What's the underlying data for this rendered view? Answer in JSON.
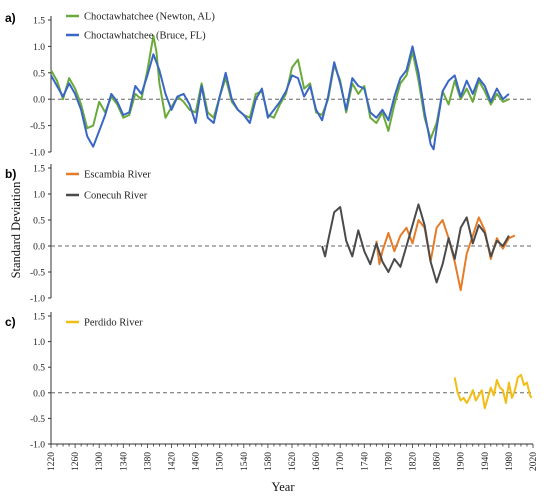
{
  "xlabel": "Year",
  "ylabel": "Standard Deviation",
  "x_ticks": [
    "1220",
    "1260",
    "1300",
    "1340",
    "1380",
    "1420",
    "1460",
    "1500",
    "1540",
    "1580",
    "1620",
    "1660",
    "1700",
    "1740",
    "1780",
    "1820",
    "1860",
    "1900",
    "1940",
    "1980",
    "2020"
  ],
  "y_ticks": [
    "-1.0",
    "-0.5",
    "0.0",
    "0.5",
    "1.0",
    "1.5"
  ],
  "colors": {
    "green": "#6aaa3a",
    "blue": "#3a66c4",
    "orange": "#e57c2a",
    "gray": "#4a4a4a",
    "yellow": "#f2bd14"
  },
  "chart_data": [
    {
      "type": "line",
      "panel_label": "a)",
      "xlabel": "Year",
      "ylabel": "Standard Deviation",
      "xlim": [
        1220,
        2020
      ],
      "ylim": [
        -1.0,
        1.5
      ],
      "grid": false,
      "zero_line": "dashed",
      "legend_position": "top-left",
      "series": [
        {
          "name": "Choctawhatchee (Newton, AL)",
          "color": "#6aaa3a",
          "x": [
            1220,
            1230,
            1240,
            1250,
            1260,
            1270,
            1280,
            1290,
            1300,
            1310,
            1320,
            1330,
            1340,
            1350,
            1360,
            1370,
            1380,
            1390,
            1395,
            1400,
            1410,
            1420,
            1430,
            1440,
            1450,
            1460,
            1470,
            1480,
            1490,
            1500,
            1510,
            1520,
            1530,
            1540,
            1550,
            1560,
            1570,
            1580,
            1590,
            1600,
            1610,
            1620,
            1630,
            1640,
            1650,
            1660,
            1670,
            1680,
            1690,
            1700,
            1710,
            1720,
            1730,
            1740,
            1750,
            1760,
            1770,
            1780,
            1790,
            1800,
            1810,
            1820,
            1830,
            1840,
            1850,
            1860,
            1870,
            1880,
            1890,
            1900,
            1910,
            1920,
            1930,
            1940,
            1950,
            1960,
            1970,
            1980
          ],
          "y": [
            0.55,
            0.35,
            0.0,
            0.4,
            0.2,
            -0.1,
            -0.55,
            -0.5,
            -0.05,
            -0.25,
            0.05,
            -0.1,
            -0.35,
            -0.3,
            0.1,
            0.0,
            0.55,
            1.2,
            0.9,
            0.3,
            -0.35,
            -0.15,
            0.05,
            -0.05,
            -0.2,
            -0.25,
            0.3,
            -0.25,
            -0.35,
            0.05,
            0.4,
            -0.05,
            -0.2,
            -0.3,
            -0.35,
            0.1,
            0.15,
            -0.3,
            -0.35,
            -0.1,
            0.1,
            0.6,
            0.75,
            0.2,
            0.3,
            -0.25,
            -0.3,
            0.0,
            0.65,
            0.35,
            -0.25,
            0.3,
            0.1,
            0.25,
            -0.35,
            -0.45,
            -0.25,
            -0.6,
            -0.1,
            0.3,
            0.45,
            0.9,
            0.35,
            -0.35,
            -0.75,
            -0.45,
            0.15,
            -0.1,
            0.35,
            0.0,
            0.2,
            -0.05,
            0.35,
            0.15,
            -0.1,
            0.1,
            -0.05,
            0.0
          ]
        },
        {
          "name": "Choctawhatchee (Bruce, FL)",
          "color": "#3a66c4",
          "x": [
            1220,
            1230,
            1240,
            1250,
            1260,
            1270,
            1280,
            1290,
            1300,
            1310,
            1320,
            1330,
            1340,
            1350,
            1360,
            1370,
            1380,
            1390,
            1400,
            1410,
            1420,
            1430,
            1440,
            1450,
            1460,
            1470,
            1480,
            1490,
            1500,
            1510,
            1520,
            1530,
            1540,
            1550,
            1560,
            1570,
            1580,
            1590,
            1600,
            1610,
            1620,
            1630,
            1640,
            1650,
            1660,
            1670,
            1680,
            1690,
            1700,
            1710,
            1720,
            1730,
            1740,
            1750,
            1760,
            1770,
            1780,
            1790,
            1800,
            1810,
            1820,
            1830,
            1840,
            1850,
            1855,
            1860,
            1870,
            1880,
            1890,
            1900,
            1910,
            1920,
            1930,
            1940,
            1950,
            1960,
            1970,
            1980
          ],
          "y": [
            0.45,
            0.25,
            0.05,
            0.3,
            0.1,
            -0.2,
            -0.7,
            -0.9,
            -0.6,
            -0.3,
            0.1,
            -0.05,
            -0.3,
            -0.25,
            0.25,
            0.1,
            0.45,
            0.85,
            0.55,
            0.1,
            -0.2,
            0.05,
            0.1,
            -0.1,
            -0.45,
            0.25,
            -0.35,
            -0.45,
            0.05,
            0.5,
            0.0,
            -0.2,
            -0.3,
            -0.45,
            0.0,
            0.2,
            -0.35,
            -0.2,
            -0.05,
            0.15,
            0.45,
            0.4,
            0.05,
            0.25,
            -0.2,
            -0.4,
            0.05,
            0.7,
            0.3,
            -0.2,
            0.4,
            0.25,
            0.2,
            -0.25,
            -0.35,
            -0.2,
            -0.4,
            0.05,
            0.4,
            0.55,
            1.0,
            0.5,
            -0.25,
            -0.85,
            -0.95,
            -0.55,
            0.15,
            0.35,
            0.45,
            0.05,
            0.35,
            0.1,
            0.4,
            0.25,
            -0.05,
            0.2,
            0.0,
            0.1
          ]
        }
      ]
    },
    {
      "type": "line",
      "panel_label": "b)",
      "xlim": [
        1220,
        2020
      ],
      "ylim": [
        -1.0,
        1.5
      ],
      "grid": false,
      "zero_line": "dashed",
      "legend_position": "top-left",
      "series": [
        {
          "name": "Escambia River",
          "color": "#e57c2a",
          "x": [
            1760,
            1765,
            1770,
            1780,
            1790,
            1800,
            1810,
            1820,
            1830,
            1840,
            1850,
            1860,
            1870,
            1880,
            1890,
            1900,
            1910,
            1920,
            1930,
            1940,
            1950,
            1960,
            1970,
            1980,
            1990
          ],
          "y": [
            0.1,
            -0.35,
            -0.1,
            0.25,
            -0.1,
            0.2,
            0.35,
            0.05,
            0.5,
            0.35,
            -0.3,
            0.35,
            0.5,
            0.15,
            -0.3,
            -0.85,
            -0.15,
            0.2,
            0.55,
            0.3,
            -0.25,
            0.15,
            -0.05,
            0.15,
            0.2
          ]
        },
        {
          "name": "Conecuh River",
          "color": "#4a4a4a",
          "x": [
            1670,
            1675,
            1680,
            1690,
            1700,
            1710,
            1720,
            1730,
            1740,
            1750,
            1760,
            1770,
            1780,
            1790,
            1800,
            1810,
            1820,
            1830,
            1840,
            1850,
            1860,
            1870,
            1880,
            1890,
            1900,
            1910,
            1920,
            1930,
            1940,
            1950,
            1960,
            1970,
            1980
          ],
          "y": [
            0.0,
            -0.2,
            0.1,
            0.65,
            0.75,
            0.1,
            -0.2,
            0.3,
            -0.1,
            -0.35,
            0.05,
            -0.3,
            -0.5,
            -0.25,
            -0.4,
            0.0,
            0.4,
            0.8,
            0.4,
            -0.3,
            -0.7,
            -0.35,
            0.15,
            -0.25,
            0.35,
            0.55,
            0.05,
            0.4,
            0.25,
            -0.2,
            0.1,
            0.0,
            0.2
          ]
        }
      ]
    },
    {
      "type": "line",
      "panel_label": "c)",
      "xlim": [
        1220,
        2020
      ],
      "ylim": [
        -1.0,
        1.5
      ],
      "grid": false,
      "zero_line": "dashed",
      "legend_position": "top-left",
      "series": [
        {
          "name": "Perdido River",
          "color": "#f2bd14",
          "x": [
            1890,
            1895,
            1900,
            1905,
            1910,
            1915,
            1920,
            1925,
            1930,
            1935,
            1940,
            1945,
            1950,
            1955,
            1960,
            1965,
            1970,
            1975,
            1980,
            1985,
            1990,
            1995,
            2000,
            2005,
            2010,
            2015,
            2018
          ],
          "y": [
            0.3,
            0.0,
            -0.15,
            -0.1,
            -0.2,
            -0.1,
            0.05,
            -0.15,
            -0.05,
            0.05,
            -0.3,
            -0.1,
            0.1,
            -0.05,
            0.25,
            0.1,
            0.05,
            -0.2,
            0.2,
            -0.1,
            0.05,
            0.3,
            0.35,
            0.15,
            0.2,
            -0.05,
            -0.1
          ]
        }
      ]
    }
  ]
}
